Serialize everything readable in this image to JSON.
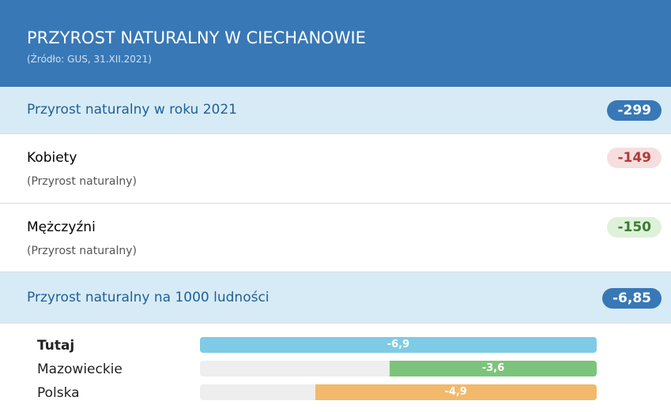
{
  "header": {
    "title": "PRZYROST NATURALNY W CIECHANOWIE",
    "source": "(Źródło: GUS, 31.XII.2021)"
  },
  "rows": [
    {
      "label": "Przyrost naturalny w roku 2021",
      "badge": "-299",
      "style": "highlight"
    },
    {
      "label": "Kobiety",
      "sublabel": "(Przyrost naturalny)",
      "badge": "-149",
      "style": "red"
    },
    {
      "label": "Mężczyźni",
      "sublabel": "(Przyrost naturalny)",
      "badge": "-150",
      "style": "green"
    },
    {
      "label": "Przyrost naturalny na 1000 ludności",
      "badge": "-6,85",
      "style": "highlight"
    }
  ],
  "chart_data": {
    "type": "bar",
    "orientation": "horizontal",
    "categories": [
      "Tutaj",
      "Mazowieckie",
      "Polska"
    ],
    "values": [
      -6.9,
      -3.6,
      -4.9
    ],
    "value_labels": [
      "-6,9",
      "-3,6",
      "-4,9"
    ],
    "colors": [
      "#7ecbe6",
      "#7cc47c",
      "#f2b96c"
    ]
  }
}
